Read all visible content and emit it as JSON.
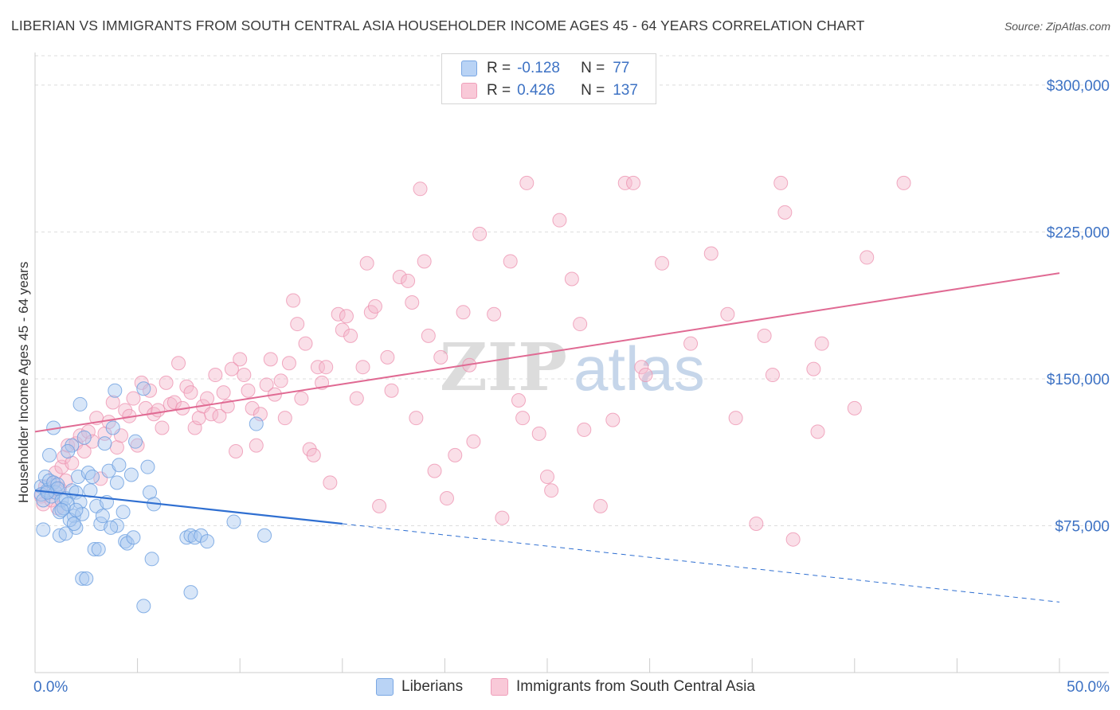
{
  "header": {
    "title": "LIBERIAN VS IMMIGRANTS FROM SOUTH CENTRAL ASIA HOUSEHOLDER INCOME AGES 45 - 64 YEARS CORRELATION CHART",
    "source": "Source: ZipAtlas.com"
  },
  "watermark": {
    "zip": "ZIP",
    "atlas": "atlas"
  },
  "legend": {
    "r_label": "R =",
    "n_label": "N =",
    "rows": [
      {
        "r": "-0.128",
        "n": "77"
      },
      {
        "r": "0.426",
        "n": "137"
      }
    ]
  },
  "colors": {
    "blue_fill": "#a9c8f0",
    "blue_stroke": "#6b9fe0",
    "blue_line": "#2f6fd1",
    "pink_fill": "#f5b8cb",
    "pink_stroke": "#ec8fae",
    "pink_line": "#e06a93",
    "tick_text": "#3d72c4",
    "grid": "#dddddd"
  },
  "chart_data": {
    "type": "scatter",
    "title": "LIBERIAN VS IMMIGRANTS FROM SOUTH CENTRAL ASIA HOUSEHOLDER INCOME AGES 45 - 64 YEARS CORRELATION CHART",
    "xlabel": "",
    "ylabel": "Householder Income Ages 45 - 64 years",
    "xlim": [
      0,
      50
    ],
    "ylim": [
      0,
      315000
    ],
    "x_tick_labels": [
      "0.0%",
      "50.0%"
    ],
    "y_ticks": [
      75000,
      150000,
      225000,
      300000
    ],
    "y_tick_labels": [
      "$75,000",
      "$150,000",
      "$225,000",
      "$300,000"
    ],
    "grid": true,
    "legend_position": "top-center",
    "series": [
      {
        "name": "Liberians",
        "r": -0.128,
        "n": 77,
        "trend": {
          "x": [
            0,
            15
          ],
          "y": [
            93000,
            76000
          ],
          "dashed_to": [
            50,
            36000
          ]
        },
        "points": [
          [
            0.3,
            95000
          ],
          [
            0.3,
            91000
          ],
          [
            0.4,
            88000
          ],
          [
            0.5,
            100000
          ],
          [
            0.6,
            93000
          ],
          [
            0.7,
            98000
          ],
          [
            0.4,
            73000
          ],
          [
            0.8,
            90000
          ],
          [
            0.9,
            97000
          ],
          [
            1.0,
            92000
          ],
          [
            1.1,
            96000
          ],
          [
            1.2,
            82000
          ],
          [
            0.7,
            111000
          ],
          [
            0.9,
            125000
          ],
          [
            1.3,
            88000
          ],
          [
            1.4,
            84000
          ],
          [
            1.5,
            89000
          ],
          [
            1.6,
            86000
          ],
          [
            1.8,
            93000
          ],
          [
            1.9,
            80000
          ],
          [
            2.0,
            74000
          ],
          [
            1.2,
            70000
          ],
          [
            1.5,
            71000
          ],
          [
            1.7,
            78000
          ],
          [
            1.9,
            76000
          ],
          [
            2.0,
            92000
          ],
          [
            2.2,
            87000
          ],
          [
            2.3,
            81000
          ],
          [
            2.1,
            100000
          ],
          [
            2.2,
            137000
          ],
          [
            2.4,
            120000
          ],
          [
            2.6,
            102000
          ],
          [
            1.8,
            116000
          ],
          [
            2.8,
            100000
          ],
          [
            3.0,
            85000
          ],
          [
            3.2,
            76000
          ],
          [
            3.3,
            80000
          ],
          [
            3.4,
            117000
          ],
          [
            3.6,
            103000
          ],
          [
            3.8,
            125000
          ],
          [
            3.9,
            144000
          ],
          [
            4.0,
            97000
          ],
          [
            4.1,
            106000
          ],
          [
            4.3,
            82000
          ],
          [
            4.4,
            67000
          ],
          [
            4.5,
            66000
          ],
          [
            4.7,
            101000
          ],
          [
            4.8,
            69000
          ],
          [
            4.9,
            118000
          ],
          [
            2.9,
            63000
          ],
          [
            3.1,
            63000
          ],
          [
            2.3,
            48000
          ],
          [
            2.5,
            48000
          ],
          [
            4.0,
            75000
          ],
          [
            5.3,
            145000
          ],
          [
            5.5,
            105000
          ],
          [
            5.6,
            92000
          ],
          [
            5.8,
            86000
          ],
          [
            5.7,
            58000
          ],
          [
            5.3,
            34000
          ],
          [
            7.4,
            69000
          ],
          [
            7.6,
            70000
          ],
          [
            7.8,
            69000
          ],
          [
            8.1,
            70000
          ],
          [
            8.4,
            67000
          ],
          [
            7.6,
            41000
          ],
          [
            9.7,
            77000
          ],
          [
            10.8,
            127000
          ],
          [
            11.2,
            70000
          ],
          [
            3.7,
            74000
          ],
          [
            1.1,
            94000
          ],
          [
            1.3,
            83000
          ],
          [
            2.7,
            93000
          ],
          [
            0.6,
            92000
          ],
          [
            1.6,
            113000
          ],
          [
            3.5,
            87000
          ],
          [
            2.0,
            83000
          ]
        ]
      },
      {
        "name": "Immigrants from South Central Asia",
        "r": 0.426,
        "n": 137,
        "trend": {
          "x": [
            0,
            50
          ],
          "y": [
            123000,
            204000
          ]
        },
        "points": [
          [
            0.3,
            90000
          ],
          [
            0.4,
            86000
          ],
          [
            0.5,
            95000
          ],
          [
            0.7,
            92000
          ],
          [
            0.8,
            88000
          ],
          [
            0.9,
            97000
          ],
          [
            1.0,
            102000
          ],
          [
            1.1,
            84000
          ],
          [
            1.2,
            94000
          ],
          [
            1.3,
            105000
          ],
          [
            1.4,
            110000
          ],
          [
            1.5,
            98000
          ],
          [
            1.6,
            116000
          ],
          [
            1.8,
            107000
          ],
          [
            2.0,
            117000
          ],
          [
            2.2,
            121000
          ],
          [
            2.4,
            113000
          ],
          [
            2.6,
            123000
          ],
          [
            2.8,
            118000
          ],
          [
            3.0,
            130000
          ],
          [
            3.2,
            99000
          ],
          [
            3.4,
            122000
          ],
          [
            3.6,
            128000
          ],
          [
            3.8,
            138000
          ],
          [
            4.0,
            115000
          ],
          [
            4.2,
            121000
          ],
          [
            4.4,
            134000
          ],
          [
            4.6,
            131000
          ],
          [
            4.8,
            140000
          ],
          [
            5.0,
            116000
          ],
          [
            5.2,
            148000
          ],
          [
            5.4,
            135000
          ],
          [
            5.6,
            144000
          ],
          [
            5.8,
            132000
          ],
          [
            6.0,
            134000
          ],
          [
            6.2,
            125000
          ],
          [
            6.4,
            148000
          ],
          [
            6.6,
            137000
          ],
          [
            6.8,
            138000
          ],
          [
            7.0,
            158000
          ],
          [
            7.2,
            135000
          ],
          [
            7.4,
            146000
          ],
          [
            7.6,
            143000
          ],
          [
            7.8,
            125000
          ],
          [
            8.0,
            130000
          ],
          [
            8.2,
            136000
          ],
          [
            8.4,
            140000
          ],
          [
            8.6,
            132000
          ],
          [
            8.8,
            152000
          ],
          [
            9.0,
            131000
          ],
          [
            9.2,
            143000
          ],
          [
            9.4,
            136000
          ],
          [
            9.6,
            155000
          ],
          [
            9.8,
            113000
          ],
          [
            10.0,
            160000
          ],
          [
            10.2,
            152000
          ],
          [
            10.4,
            144000
          ],
          [
            10.6,
            135000
          ],
          [
            10.8,
            116000
          ],
          [
            11.0,
            132000
          ],
          [
            11.3,
            147000
          ],
          [
            11.5,
            160000
          ],
          [
            11.7,
            142000
          ],
          [
            12.0,
            149000
          ],
          [
            12.2,
            130000
          ],
          [
            12.4,
            158000
          ],
          [
            12.6,
            190000
          ],
          [
            12.8,
            178000
          ],
          [
            13.0,
            140000
          ],
          [
            13.2,
            168000
          ],
          [
            13.4,
            114000
          ],
          [
            13.6,
            111000
          ],
          [
            13.8,
            156000
          ],
          [
            14.0,
            148000
          ],
          [
            14.2,
            156000
          ],
          [
            14.4,
            97000
          ],
          [
            14.8,
            183000
          ],
          [
            15.0,
            175000
          ],
          [
            15.2,
            182000
          ],
          [
            15.4,
            172000
          ],
          [
            15.7,
            140000
          ],
          [
            16.0,
            156000
          ],
          [
            16.2,
            209000
          ],
          [
            16.4,
            184000
          ],
          [
            16.6,
            187000
          ],
          [
            16.8,
            85000
          ],
          [
            17.2,
            161000
          ],
          [
            17.4,
            144000
          ],
          [
            17.8,
            202000
          ],
          [
            18.2,
            200000
          ],
          [
            18.4,
            189000
          ],
          [
            18.6,
            130000
          ],
          [
            18.8,
            247000
          ],
          [
            19.0,
            210000
          ],
          [
            19.2,
            172000
          ],
          [
            19.5,
            103000
          ],
          [
            19.8,
            161000
          ],
          [
            20.1,
            89000
          ],
          [
            20.5,
            111000
          ],
          [
            20.9,
            184000
          ],
          [
            21.2,
            157000
          ],
          [
            21.4,
            118000
          ],
          [
            21.7,
            224000
          ],
          [
            22.4,
            183000
          ],
          [
            22.8,
            79000
          ],
          [
            23.2,
            210000
          ],
          [
            23.6,
            139000
          ],
          [
            23.8,
            130000
          ],
          [
            24.0,
            250000
          ],
          [
            24.6,
            122000
          ],
          [
            25.0,
            100000
          ],
          [
            25.2,
            93000
          ],
          [
            25.6,
            231000
          ],
          [
            26.2,
            201000
          ],
          [
            26.6,
            178000
          ],
          [
            26.8,
            124000
          ],
          [
            27.6,
            85000
          ],
          [
            28.2,
            129000
          ],
          [
            28.8,
            250000
          ],
          [
            29.2,
            250000
          ],
          [
            29.6,
            156000
          ],
          [
            29.8,
            152000
          ],
          [
            30.6,
            209000
          ],
          [
            32.0,
            168000
          ],
          [
            33.0,
            214000
          ],
          [
            33.8,
            183000
          ],
          [
            34.2,
            130000
          ],
          [
            35.2,
            76000
          ],
          [
            35.6,
            172000
          ],
          [
            36.0,
            152000
          ],
          [
            36.4,
            250000
          ],
          [
            36.6,
            235000
          ],
          [
            37.0,
            68000
          ],
          [
            38.0,
            155000
          ],
          [
            38.2,
            123000
          ],
          [
            38.4,
            168000
          ],
          [
            40.0,
            135000
          ],
          [
            40.6,
            212000
          ],
          [
            42.4,
            250000
          ]
        ]
      }
    ]
  },
  "bottom_legend": {
    "items": [
      {
        "label": "Liberians"
      },
      {
        "label": "Immigrants from South Central Asia"
      }
    ]
  }
}
